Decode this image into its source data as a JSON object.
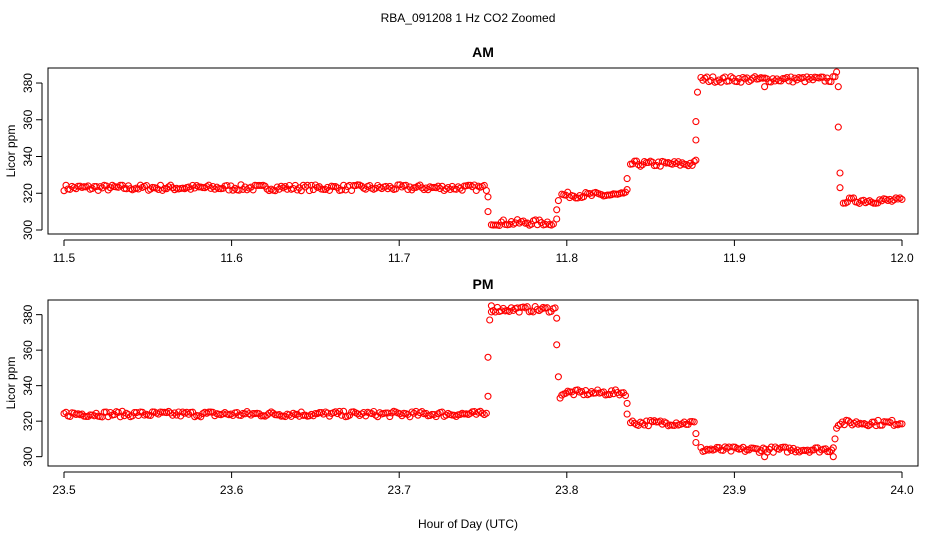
{
  "title": "RBA_091208  1 Hz CO2 Zoomed",
  "xlabel": "Hour of Day (UTC)",
  "point_color": "#ff0000",
  "chart_data": [
    {
      "type": "scatter",
      "title": "AM",
      "ylabel": "Licor ppm",
      "xlim": [
        11.5,
        12.0
      ],
      "ylim": [
        300,
        386
      ],
      "x_ticks": [
        "11.5",
        "11.6",
        "11.7",
        "11.8",
        "11.9",
        "12.0"
      ],
      "y_ticks": [
        "300",
        "320",
        "340",
        "360",
        "380"
      ],
      "series": [
        {
          "segments": [
            {
              "x_start": 11.5,
              "x_end": 11.752,
              "y": 323
            },
            {
              "x_start": 11.755,
              "x_end": 11.792,
              "y": 304
            },
            {
              "x_start": 11.797,
              "x_end": 11.835,
              "y": 319
            },
            {
              "x_start": 11.838,
              "x_end": 11.876,
              "y": 336
            },
            {
              "x_start": 11.88,
              "x_end": 11.96,
              "y": 382
            },
            {
              "x_start": 11.965,
              "x_end": 12.0,
              "y": 316
            }
          ],
          "transitions": [
            {
              "x": 11.753,
              "y": 318
            },
            {
              "x": 11.753,
              "y": 310
            },
            {
              "x": 11.794,
              "y": 306
            },
            {
              "x": 11.794,
              "y": 311
            },
            {
              "x": 11.795,
              "y": 316
            },
            {
              "x": 11.836,
              "y": 322
            },
            {
              "x": 11.836,
              "y": 328
            },
            {
              "x": 11.877,
              "y": 338
            },
            {
              "x": 11.877,
              "y": 349
            },
            {
              "x": 11.877,
              "y": 359
            },
            {
              "x": 11.878,
              "y": 375
            },
            {
              "x": 11.961,
              "y": 386
            },
            {
              "x": 11.962,
              "y": 378
            },
            {
              "x": 11.962,
              "y": 356
            },
            {
              "x": 11.963,
              "y": 331
            },
            {
              "x": 11.963,
              "y": 323
            },
            {
              "x": 11.918,
              "y": 378
            }
          ]
        }
      ]
    },
    {
      "type": "scatter",
      "title": "PM",
      "ylabel": "Licor ppm",
      "xlim": [
        23.5,
        24.0
      ],
      "ylim": [
        297,
        386
      ],
      "x_ticks": [
        "23.5",
        "23.6",
        "23.7",
        "23.8",
        "23.9",
        "24.0"
      ],
      "y_ticks": [
        "300",
        "320",
        "340",
        "360",
        "380"
      ],
      "series": [
        {
          "segments": [
            {
              "x_start": 23.5,
              "x_end": 23.752,
              "y": 324
            },
            {
              "x_start": 23.755,
              "x_end": 23.793,
              "y": 383
            },
            {
              "x_start": 23.797,
              "x_end": 23.835,
              "y": 336
            },
            {
              "x_start": 23.838,
              "x_end": 23.876,
              "y": 319
            },
            {
              "x_start": 23.88,
              "x_end": 23.958,
              "y": 304
            },
            {
              "x_start": 23.962,
              "x_end": 24.0,
              "y": 319
            }
          ],
          "transitions": [
            {
              "x": 23.753,
              "y": 334
            },
            {
              "x": 23.753,
              "y": 356
            },
            {
              "x": 23.754,
              "y": 377
            },
            {
              "x": 23.755,
              "y": 385
            },
            {
              "x": 23.794,
              "y": 378
            },
            {
              "x": 23.794,
              "y": 363
            },
            {
              "x": 23.795,
              "y": 345
            },
            {
              "x": 23.796,
              "y": 333
            },
            {
              "x": 23.836,
              "y": 330
            },
            {
              "x": 23.836,
              "y": 324
            },
            {
              "x": 23.877,
              "y": 313
            },
            {
              "x": 23.877,
              "y": 308
            },
            {
              "x": 23.959,
              "y": 305
            },
            {
              "x": 23.959,
              "y": 300
            },
            {
              "x": 23.96,
              "y": 310
            },
            {
              "x": 23.961,
              "y": 316
            },
            {
              "x": 23.918,
              "y": 300
            }
          ]
        }
      ]
    }
  ]
}
